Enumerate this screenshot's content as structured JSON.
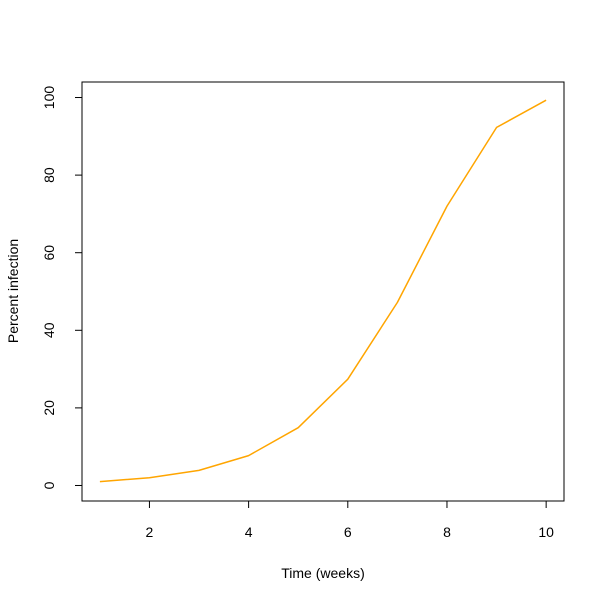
{
  "chart_data": {
    "type": "line",
    "title": "",
    "xlabel": "Time (weeks)",
    "ylabel": "Percent infection",
    "xlim": [
      0.64,
      10.36
    ],
    "ylim": [
      -4,
      104
    ],
    "xticks": [
      2,
      4,
      6,
      8,
      10
    ],
    "yticks": [
      0,
      20,
      40,
      60,
      80,
      100
    ],
    "grid": false,
    "legend": "none",
    "series": [
      {
        "color": "#FFA500",
        "x": [
          1,
          2,
          3,
          4,
          5,
          6,
          7,
          8,
          9,
          10
        ],
        "y": [
          1.0,
          2.0,
          3.9,
          7.7,
          14.9,
          27.4,
          47.2,
          72.0,
          92.3,
          99.3
        ]
      }
    ]
  }
}
